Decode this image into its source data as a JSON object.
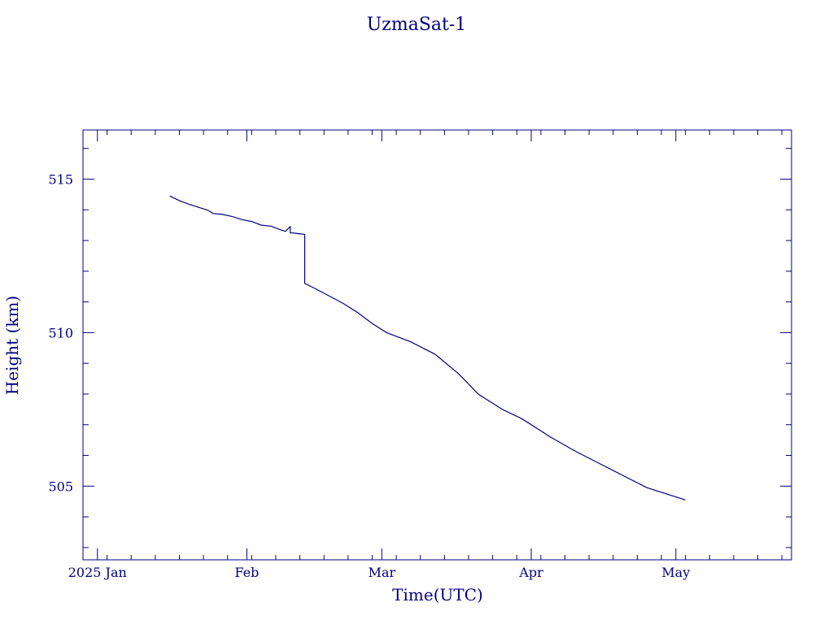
{
  "colors": {
    "ink": "#000080",
    "background": "#ffffff"
  },
  "chart_data": {
    "type": "line",
    "title": "UzmaSat-1",
    "xlabel": "Time(UTC)",
    "ylabel": "Height (km)",
    "xlim": [
      "2024-12-29",
      "2025-05-25"
    ],
    "ylim": [
      502.6,
      516.6
    ],
    "grid": false,
    "legend": "none",
    "x_ticks": [
      {
        "date": "2025-01-01",
        "label": "2025 Jan"
      },
      {
        "date": "2025-02-01",
        "label": "Feb"
      },
      {
        "date": "2025-03-01",
        "label": "Mar"
      },
      {
        "date": "2025-04-01",
        "label": "Apr"
      },
      {
        "date": "2025-05-01",
        "label": "May"
      }
    ],
    "y_ticks": [
      505,
      510,
      515
    ],
    "series": [
      {
        "points": [
          [
            "2025-01-16",
            514.45
          ],
          [
            "2025-01-18",
            514.3
          ],
          [
            "2025-01-20",
            514.18
          ],
          [
            "2025-01-22",
            514.08
          ],
          [
            "2025-01-24",
            513.98
          ],
          [
            "2025-01-25",
            513.88
          ],
          [
            "2025-01-27",
            513.85
          ],
          [
            "2025-01-29",
            513.78
          ],
          [
            "2025-01-31",
            513.68
          ],
          [
            "2025-02-02",
            513.62
          ],
          [
            "2025-02-04",
            513.5
          ],
          [
            "2025-02-06",
            513.47
          ],
          [
            "2025-02-08",
            513.35
          ],
          [
            "2025-02-09",
            513.3
          ],
          [
            "2025-02-10",
            513.45
          ],
          [
            "2025-02-10",
            513.25
          ],
          [
            "2025-02-11",
            513.24
          ],
          [
            "2025-02-13",
            513.2
          ],
          [
            "2025-02-13",
            511.6
          ],
          [
            "2025-02-15",
            511.45
          ],
          [
            "2025-02-18",
            511.2
          ],
          [
            "2025-02-21",
            510.95
          ],
          [
            "2025-02-24",
            510.65
          ],
          [
            "2025-02-27",
            510.3
          ],
          [
            "2025-03-02",
            510.0
          ],
          [
            "2025-03-07",
            509.7
          ],
          [
            "2025-03-12",
            509.3
          ],
          [
            "2025-03-17",
            508.65
          ],
          [
            "2025-03-21",
            508.0
          ],
          [
            "2025-03-26",
            507.5
          ],
          [
            "2025-03-30",
            507.2
          ],
          [
            "2025-04-05",
            506.6
          ],
          [
            "2025-04-10",
            506.15
          ],
          [
            "2025-04-15",
            505.75
          ],
          [
            "2025-04-20",
            505.35
          ],
          [
            "2025-04-25",
            504.95
          ],
          [
            "2025-05-03",
            504.55
          ]
        ]
      }
    ]
  }
}
